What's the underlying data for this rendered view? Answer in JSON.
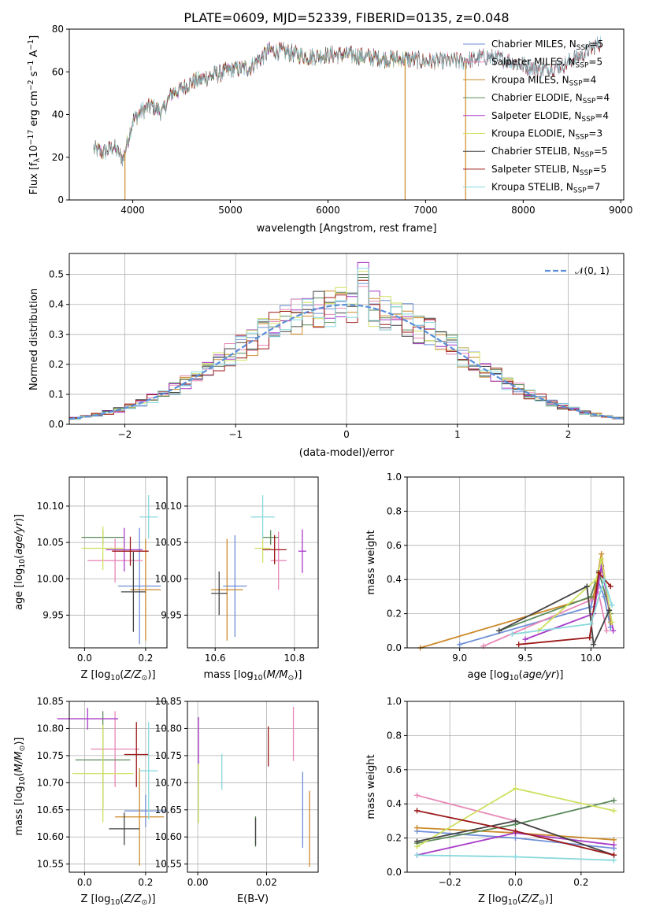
{
  "figure": {
    "title": "PLATE=0609, MJD=52339, FIBERID=0135, z=0.048"
  },
  "colors": {
    "chabrier_miles": "#6f8fd6",
    "salpeter_miles": "#e888b8",
    "kroupa_miles": "#cc8a2a",
    "chabrier_elodie": "#5a8a5a",
    "salpeter_elodie": "#a83cc8",
    "kroupa_elodie": "#cfe060",
    "chabrier_stelib": "#444444",
    "salpeter_stelib": "#9c1a1a",
    "kroupa_stelib": "#88d8dc",
    "gauss": "#5b8fd9"
  },
  "chart_data": [
    {
      "type": "line",
      "name": "spectrum",
      "title": "PLATE=0609, MJD=52339, FIBERID=0135, z=0.048",
      "xlabel": "wavelength [Angstrom, rest frame]",
      "ylabel": "Flux [f_λ 10^-17 erg cm^-2 s^-1 A^-1]",
      "xlim": [
        3350,
        9030
      ],
      "ylim": [
        0,
        80
      ],
      "xticks": [
        4000,
        5000,
        6000,
        7000,
        8000,
        9000
      ],
      "yticks": [
        0,
        20,
        40,
        60,
        80
      ],
      "grid": false,
      "legend": "top-right",
      "continuum": {
        "x": [
          3600,
          3700,
          3800,
          3900,
          4000,
          4100,
          4200,
          4300,
          4400,
          4500,
          4600,
          4800,
          5000,
          5200,
          5400,
          5600,
          5800,
          6000,
          6200,
          6400,
          6600,
          6800,
          7000,
          7200,
          7400,
          7600,
          7800,
          8000,
          8200,
          8400,
          8600,
          8800
        ],
        "y": [
          24,
          22,
          25,
          19,
          37,
          42,
          44,
          41,
          50,
          52,
          55,
          58,
          61,
          62,
          70,
          69,
          67,
          68,
          68,
          67,
          66,
          66,
          65,
          65,
          65,
          67,
          66,
          63,
          61,
          63,
          68,
          74
        ]
      },
      "spikes": [
        {
          "x": 3920,
          "to": 0
        },
        {
          "x": 6790,
          "to": 0
        },
        {
          "x": 7410,
          "to": 0
        }
      ],
      "series": [
        {
          "name": "Chabrier MILES, N",
          "sub": "SSP",
          "n": "5",
          "coverage": [
            3600,
            9000
          ]
        },
        {
          "name": "Salpeter MILES, N",
          "sub": "SSP",
          "n": "5",
          "coverage": [
            3600,
            9000
          ]
        },
        {
          "name": "Kroupa MILES, N",
          "sub": "SSP",
          "n": "4",
          "coverage": [
            3600,
            7400
          ]
        },
        {
          "name": "Chabrier ELODIE, N",
          "sub": "SSP",
          "n": "4",
          "coverage": [
            3600,
            6800
          ]
        },
        {
          "name": "Salpeter ELODIE, N",
          "sub": "SSP",
          "n": "4",
          "coverage": [
            3600,
            6800
          ]
        },
        {
          "name": "Kroupa ELODIE, N",
          "sub": "SSP",
          "n": "3",
          "coverage": [
            3600,
            6800
          ]
        },
        {
          "name": "Chabrier STELIB, N",
          "sub": "SSP",
          "n": "5",
          "coverage": [
            3600,
            9000
          ]
        },
        {
          "name": "Salpeter STELIB, N",
          "sub": "SSP",
          "n": "5",
          "coverage": [
            3600,
            9000
          ]
        },
        {
          "name": "Kroupa STELIB, N",
          "sub": "SSP",
          "n": "7",
          "coverage": [
            3600,
            9000
          ]
        }
      ]
    },
    {
      "type": "line",
      "name": "residual-histogram",
      "xlabel": "(data-model)/error",
      "ylabel": "Normed distribution",
      "xlim": [
        -2.5,
        2.5
      ],
      "ylim": [
        0,
        0.57
      ],
      "xticks": [
        -2,
        -1,
        0,
        1,
        2
      ],
      "xticklabels": [
        "−2",
        "−1",
        "0",
        "1",
        "2"
      ],
      "yticks": [
        0,
        0.1,
        0.2,
        0.3,
        0.4,
        0.5
      ],
      "yticklabels": [
        "0.0",
        "0.1",
        "0.2",
        "0.3",
        "0.4",
        "0.5"
      ],
      "grid": true,
      "legend": "top-right",
      "legend_label": "𝒩(0, 1)",
      "bin_width": 0.1,
      "peaks": [
        0.47,
        0.46,
        0.48,
        0.49,
        0.54,
        0.51,
        0.5,
        0.48,
        0.52
      ]
    },
    {
      "type": "scatter",
      "name": "age-vs-Z",
      "xlabel": "Z [log10(Z/Z⊙)]",
      "ylabel": "age [log10(age/yr)]",
      "xlim": [
        -0.05,
        0.27
      ],
      "ylim": [
        9.905,
        10.14
      ],
      "xticks": [
        0.0,
        0.2
      ],
      "xticklabels": [
        "0.0",
        "0.2"
      ],
      "yticks": [
        9.95,
        10.0,
        10.05,
        10.1
      ],
      "yticklabels": [
        "9.95",
        "10.00",
        "10.05",
        "10.10"
      ],
      "grid": true,
      "points": [
        {
          "x": 0.18,
          "y": 9.99,
          "xerr": 0.07,
          "yerr": 0.08
        },
        {
          "x": 0.1,
          "y": 10.025,
          "xerr": 0.09,
          "yerr": 0.03
        },
        {
          "x": 0.2,
          "y": 9.985,
          "xerr": 0.05,
          "yerr": 0.07
        },
        {
          "x": 0.06,
          "y": 10.057,
          "xerr": 0.07,
          "yerr": 0.01
        },
        {
          "x": 0.13,
          "y": 10.04,
          "xerr": 0.06,
          "yerr": 0.03
        },
        {
          "x": 0.06,
          "y": 10.042,
          "xerr": 0.07,
          "yerr": 0.03
        },
        {
          "x": 0.16,
          "y": 9.982,
          "xerr": 0.04,
          "yerr": 0.055
        },
        {
          "x": 0.15,
          "y": 10.038,
          "xerr": 0.06,
          "yerr": 0.02
        },
        {
          "x": 0.21,
          "y": 10.085,
          "xerr": 0.03,
          "yerr": 0.03
        }
      ]
    },
    {
      "type": "scatter",
      "name": "age-vs-mass",
      "xlabel": "mass [log10(M/M⊙)]",
      "ylabel": "",
      "xlim": [
        10.53,
        10.86
      ],
      "ylim": [
        9.905,
        10.14
      ],
      "xticks": [
        10.6,
        10.8
      ],
      "xticklabels": [
        "10.6",
        "10.8"
      ],
      "yticks": [
        9.95,
        10.0,
        10.05,
        10.1
      ],
      "yticklabels": [
        "9.95",
        "10.00",
        "10.05",
        "10.10"
      ],
      "grid": true,
      "points": [
        {
          "x": 10.65,
          "y": 9.99,
          "xerr": 0.03,
          "yerr": 0.07
        },
        {
          "x": 10.76,
          "y": 10.025,
          "xerr": 0.02,
          "yerr": 0.04
        },
        {
          "x": 10.63,
          "y": 9.985,
          "xerr": 0.04,
          "yerr": 0.07
        },
        {
          "x": 10.74,
          "y": 10.057,
          "xerr": 0.02,
          "yerr": 0.01
        },
        {
          "x": 10.82,
          "y": 10.038,
          "xerr": 0.01,
          "yerr": 0.03
        },
        {
          "x": 10.72,
          "y": 10.042,
          "xerr": 0.02,
          "yerr": 0.02
        },
        {
          "x": 10.61,
          "y": 9.98,
          "xerr": 0.02,
          "yerr": 0.03
        },
        {
          "x": 10.75,
          "y": 10.04,
          "xerr": 0.03,
          "yerr": 0.02
        },
        {
          "x": 10.72,
          "y": 10.085,
          "xerr": 0.03,
          "yerr": 0.03
        }
      ]
    },
    {
      "type": "line",
      "name": "mass-weight-vs-age",
      "xlabel": "age [log10(age/yr)]",
      "ylabel": "mass weight",
      "xlim": [
        8.6,
        10.25
      ],
      "ylim": [
        0,
        1
      ],
      "xticks": [
        9.0,
        9.5,
        10.0
      ],
      "xticklabels": [
        "9.0",
        "9.5",
        "10.0"
      ],
      "yticks": [
        0,
        0.2,
        0.4,
        0.6,
        0.8,
        1.0
      ],
      "yticklabels": [
        "0.0",
        "0.2",
        "0.4",
        "0.6",
        "0.8",
        "1.0"
      ],
      "grid": true,
      "series": [
        {
          "key": "chabrier_miles",
          "x": [
            9.0,
            10.0,
            10.05,
            10.1,
            10.15
          ],
          "y": [
            0.02,
            0.24,
            0.4,
            0.3,
            0.12
          ]
        },
        {
          "key": "salpeter_miles",
          "x": [
            9.18,
            10.0,
            10.05,
            10.12
          ],
          "y": [
            0.01,
            0.28,
            0.35,
            0.1
          ]
        },
        {
          "key": "kroupa_miles",
          "x": [
            8.7,
            10.02,
            10.08,
            10.15
          ],
          "y": [
            0.0,
            0.3,
            0.55,
            0.15
          ]
        },
        {
          "key": "chabrier_elodie",
          "x": [
            9.3,
            10.0,
            10.06,
            10.15
          ],
          "y": [
            0.1,
            0.3,
            0.45,
            0.2
          ]
        },
        {
          "key": "salpeter_elodie",
          "x": [
            9.5,
            10.02,
            10.08,
            10.17
          ],
          "y": [
            0.05,
            0.2,
            0.48,
            0.1
          ]
        },
        {
          "key": "kroupa_elodie",
          "x": [
            9.6,
            10.04,
            10.08,
            10.16
          ],
          "y": [
            0.1,
            0.4,
            0.52,
            0.15
          ]
        },
        {
          "key": "chabrier_stelib",
          "x": [
            9.3,
            9.97,
            10.02,
            10.14
          ],
          "y": [
            0.1,
            0.36,
            0.02,
            0.22
          ]
        },
        {
          "key": "salpeter_stelib",
          "x": [
            9.45,
            9.99,
            10.06,
            10.15
          ],
          "y": [
            0.02,
            0.06,
            0.44,
            0.36
          ]
        },
        {
          "key": "kroupa_stelib",
          "x": [
            9.4,
            10.0,
            10.1,
            10.16
          ],
          "y": [
            0.08,
            0.14,
            0.4,
            0.25
          ]
        }
      ]
    },
    {
      "type": "scatter",
      "name": "mass-vs-Z",
      "xlabel": "Z [log10(Z/Z⊙)]",
      "ylabel": "mass [log10(M/M⊙)]",
      "xlim": [
        -0.05,
        0.27
      ],
      "ylim": [
        10.535,
        10.85
      ],
      "xticks": [
        0.0,
        0.2
      ],
      "xticklabels": [
        "0.0",
        "0.2"
      ],
      "yticks": [
        10.55,
        10.6,
        10.65,
        10.7,
        10.75,
        10.8,
        10.85
      ],
      "yticklabels": [
        "10.55",
        "10.60",
        "10.65",
        "10.70",
        "10.75",
        "10.80",
        "10.85"
      ],
      "grid": true,
      "points": [
        {
          "x": 0.2,
          "y": 10.648,
          "xerr": 0.07,
          "yerr": 0.03
        },
        {
          "x": 0.1,
          "y": 10.762,
          "xerr": 0.08,
          "yerr": 0.07
        },
        {
          "x": 0.18,
          "y": 10.637,
          "xerr": 0.08,
          "yerr": 0.09
        },
        {
          "x": 0.06,
          "y": 10.742,
          "xerr": 0.09,
          "yerr": 0.09
        },
        {
          "x": 0.01,
          "y": 10.818,
          "xerr": 0.1,
          "yerr": 0.02
        },
        {
          "x": 0.06,
          "y": 10.717,
          "xerr": 0.1,
          "yerr": 0.09
        },
        {
          "x": 0.13,
          "y": 10.615,
          "xerr": 0.05,
          "yerr": 0.03
        },
        {
          "x": 0.17,
          "y": 10.752,
          "xerr": 0.04,
          "yerr": 0.06
        },
        {
          "x": 0.21,
          "y": 10.722,
          "xerr": 0.03,
          "yerr": 0.09
        }
      ]
    },
    {
      "type": "scatter",
      "name": "mass-vs-EBV",
      "xlabel": "E(B-V)",
      "ylabel": "",
      "xlim": [
        -0.003,
        0.035
      ],
      "ylim": [
        10.535,
        10.85
      ],
      "xticks": [
        0.0,
        0.02
      ],
      "xticklabels": [
        "0.00",
        "0.02"
      ],
      "yticks": [
        10.55,
        10.6,
        10.65,
        10.7,
        10.75,
        10.8,
        10.85
      ],
      "yticklabels": [
        "10.55",
        "10.60",
        "10.65",
        "10.70",
        "10.75",
        "10.80",
        "10.85"
      ],
      "grid": true,
      "points": [
        {
          "x": 0.0305,
          "y": 10.65,
          "xerr": 0.0,
          "yerr": 0.07
        },
        {
          "x": 0.0278,
          "y": 10.79,
          "xerr": 0.0,
          "yerr": 0.05
        },
        {
          "x": 0.0325,
          "y": 10.615,
          "xerr": 0.0,
          "yerr": 0.07
        },
        {
          "x": 0.0168,
          "y": 10.61,
          "xerr": 0.0,
          "yerr": 0.028
        },
        {
          "x": 0.0002,
          "y": 10.778,
          "xerr": 0.0,
          "yerr": 0.043
        },
        {
          "x": 0.0002,
          "y": 10.68,
          "xerr": 0.0,
          "yerr": 0.055
        },
        {
          "x": 0.0168,
          "y": 10.61,
          "xerr": 0.0,
          "yerr": 0.025
        },
        {
          "x": 0.0205,
          "y": 10.767,
          "xerr": 0.0,
          "yerr": 0.037
        },
        {
          "x": 0.007,
          "y": 10.72,
          "xerr": 0.0,
          "yerr": 0.033
        }
      ]
    },
    {
      "type": "line",
      "name": "mass-weight-vs-Z",
      "xlabel": "Z [log10(Z/Z⊙)]",
      "ylabel": "mass weight",
      "xlim": [
        -0.33,
        0.33
      ],
      "ylim": [
        0,
        1
      ],
      "xticks": [
        -0.2,
        0.0,
        0.2
      ],
      "xticklabels": [
        "−0.2",
        "0.0",
        "0.2"
      ],
      "yticks": [
        0,
        0.2,
        0.4,
        0.6,
        0.8,
        1.0
      ],
      "yticklabels": [
        "0.0",
        "0.2",
        "0.4",
        "0.6",
        "0.8",
        "1.0"
      ],
      "grid": true,
      "series": [
        {
          "key": "chabrier_miles",
          "x": [
            -0.3,
            0.0,
            0.3
          ],
          "y": [
            0.24,
            0.2,
            0.14
          ]
        },
        {
          "key": "salpeter_miles",
          "x": [
            -0.3,
            0.0,
            0.3
          ],
          "y": [
            0.45,
            0.3,
            0.1
          ]
        },
        {
          "key": "kroupa_miles",
          "x": [
            -0.3,
            0.0,
            0.3
          ],
          "y": [
            0.26,
            0.23,
            0.19
          ]
        },
        {
          "key": "chabrier_elodie",
          "x": [
            -0.3,
            0.0,
            0.3
          ],
          "y": [
            0.17,
            0.28,
            0.42
          ]
        },
        {
          "key": "salpeter_elodie",
          "x": [
            -0.3,
            0.0,
            0.3
          ],
          "y": [
            0.1,
            0.23,
            0.16
          ]
        },
        {
          "key": "kroupa_elodie",
          "x": [
            -0.3,
            0.0,
            0.3
          ],
          "y": [
            0.15,
            0.49,
            0.36
          ]
        },
        {
          "key": "chabrier_stelib",
          "x": [
            -0.3,
            0.0,
            0.3
          ],
          "y": [
            0.18,
            0.3,
            0.1
          ]
        },
        {
          "key": "salpeter_stelib",
          "x": [
            -0.3,
            0.0,
            0.3
          ],
          "y": [
            0.36,
            0.24,
            0.1
          ]
        },
        {
          "key": "kroupa_stelib",
          "x": [
            -0.3,
            0.0,
            0.3
          ],
          "y": [
            0.1,
            0.09,
            0.07
          ]
        }
      ]
    }
  ]
}
